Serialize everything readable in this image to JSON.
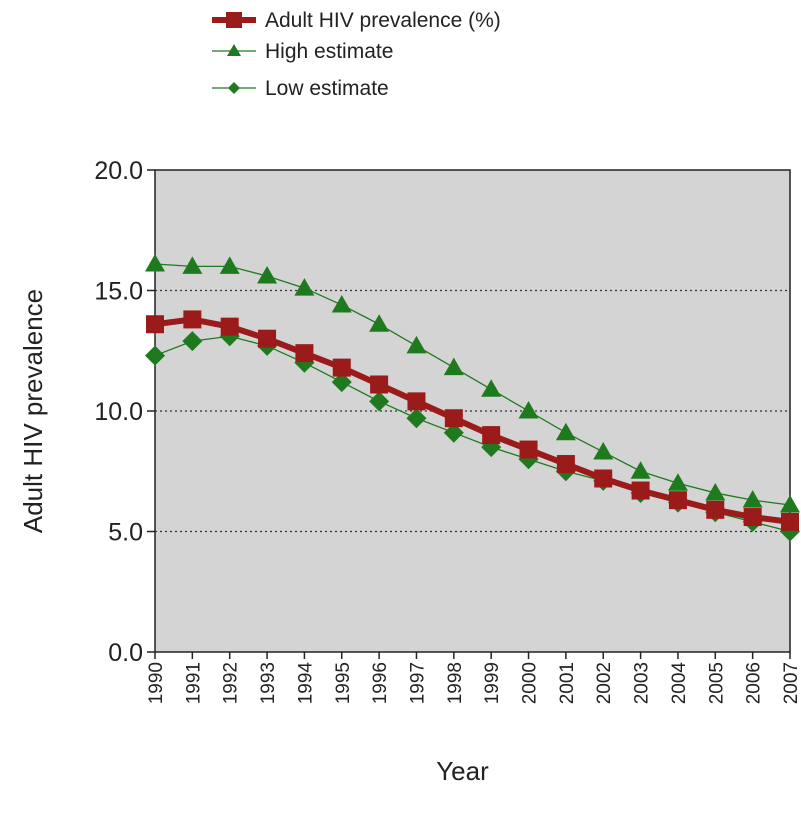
{
  "chart_data": {
    "type": "line",
    "title": "",
    "xlabel": "Year",
    "ylabel": "Adult HIV prevalence",
    "ylim": [
      0,
      20
    ],
    "yticks": [
      "0.0",
      "5.0",
      "10.0",
      "15.0",
      "20.0"
    ],
    "x": [
      "1990",
      "1991",
      "1992",
      "1993",
      "1994",
      "1995",
      "1996",
      "1997",
      "1998",
      "1999",
      "2000",
      "2001",
      "2002",
      "2003",
      "2004",
      "2005",
      "2006",
      "2007"
    ],
    "grid": "horizontal dotted",
    "legend_placement": "top-left",
    "series": [
      {
        "name": "Adult HIV prevalence (%)",
        "marker": "square",
        "color": "#9b1b1b",
        "values": [
          13.6,
          13.8,
          13.5,
          13.0,
          12.4,
          11.8,
          11.1,
          10.4,
          9.7,
          9.0,
          8.4,
          7.8,
          7.2,
          6.7,
          6.3,
          5.9,
          5.6,
          5.4
        ]
      },
      {
        "name": "High estimate",
        "marker": "triangle",
        "color": "#1f7a1f",
        "values": [
          16.1,
          16.0,
          16.0,
          15.6,
          15.1,
          14.4,
          13.6,
          12.7,
          11.8,
          10.9,
          10.0,
          9.1,
          8.3,
          7.5,
          7.0,
          6.6,
          6.3,
          6.1
        ]
      },
      {
        "name": "Low estimate",
        "marker": "diamond",
        "color": "#1f7a1f",
        "values": [
          12.3,
          12.9,
          13.1,
          12.7,
          12.0,
          11.2,
          10.4,
          9.7,
          9.1,
          8.5,
          8.0,
          7.5,
          7.1,
          6.6,
          6.2,
          5.8,
          5.4,
          5.0
        ]
      }
    ]
  }
}
